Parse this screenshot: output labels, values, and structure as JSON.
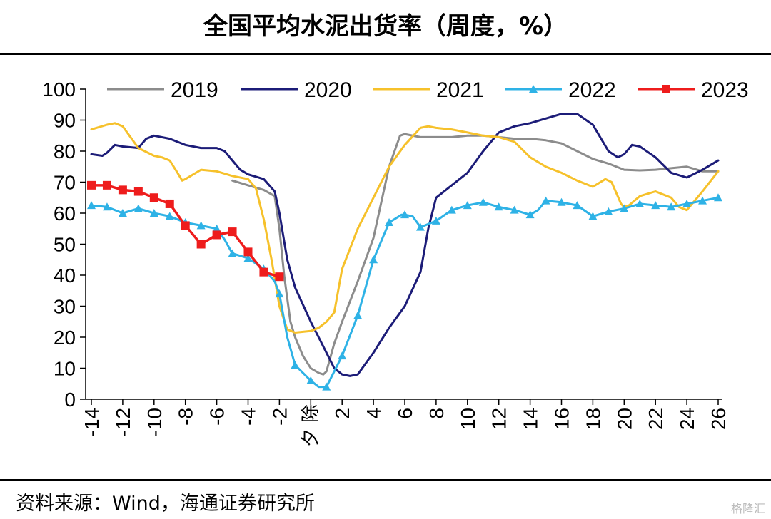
{
  "title": "全国平均水泥出货率（周度，%）",
  "source": "资料来源：Wind，海通证券研究所",
  "watermark": "格隆汇",
  "chart_data": {
    "type": "line",
    "title": "全国平均水泥出货率（周度，%）",
    "xlabel": "",
    "ylabel": "",
    "ylim": [
      0,
      100
    ],
    "yticks": [
      "0",
      "10",
      "20",
      "30",
      "40",
      "50",
      "60",
      "70",
      "80",
      "90",
      "100"
    ],
    "xlim": [
      -14,
      26
    ],
    "xticks": [
      "-14",
      "-12",
      "-10",
      "-8",
      "-6",
      "-4",
      "-2",
      "除夕",
      "2",
      "4",
      "6",
      "8",
      "10",
      "12",
      "14",
      "16",
      "18",
      "20",
      "22",
      "24",
      "26"
    ],
    "grid": false,
    "legend": "top",
    "series": [
      {
        "name": "2019",
        "color": "#8c8c8c",
        "marker": "none",
        "points": [
          [
            -5,
            70.5
          ],
          [
            -4,
            69
          ],
          [
            -3,
            67.5
          ],
          [
            -2.3,
            65.5
          ],
          [
            -2,
            55
          ],
          [
            -1.7,
            40
          ],
          [
            -1.3,
            25
          ],
          [
            -1,
            20
          ],
          [
            -0.5,
            14
          ],
          [
            0,
            10
          ],
          [
            0.5,
            8.5
          ],
          [
            0.8,
            8
          ],
          [
            1,
            9
          ],
          [
            1.5,
            18
          ],
          [
            2,
            25
          ],
          [
            3,
            38
          ],
          [
            4,
            52
          ],
          [
            5,
            75
          ],
          [
            5.7,
            85
          ],
          [
            6,
            85.5
          ],
          [
            7,
            84.5
          ],
          [
            8,
            84.5
          ],
          [
            9,
            84.5
          ],
          [
            10,
            85
          ],
          [
            11,
            85
          ],
          [
            12,
            84.5
          ],
          [
            13,
            84
          ],
          [
            14,
            84
          ],
          [
            15,
            83.5
          ],
          [
            16,
            82.5
          ],
          [
            17,
            80
          ],
          [
            18,
            77.5
          ],
          [
            19,
            76
          ],
          [
            20,
            74
          ],
          [
            21,
            73.8
          ],
          [
            22,
            74
          ],
          [
            23,
            74.5
          ],
          [
            24,
            75
          ],
          [
            25,
            73.5
          ],
          [
            26,
            73.5
          ]
        ]
      },
      {
        "name": "2020",
        "color": "#1c1c78",
        "marker": "none",
        "points": [
          [
            -14,
            79
          ],
          [
            -13.3,
            78.5
          ],
          [
            -13,
            79.5
          ],
          [
            -12.5,
            82
          ],
          [
            -12,
            81.5
          ],
          [
            -11,
            81
          ],
          [
            -10.5,
            84
          ],
          [
            -10,
            85
          ],
          [
            -9,
            84
          ],
          [
            -8,
            82
          ],
          [
            -7,
            81
          ],
          [
            -6,
            81
          ],
          [
            -5.5,
            80
          ],
          [
            -5,
            77
          ],
          [
            -4.5,
            74
          ],
          [
            -4,
            72.5
          ],
          [
            -3,
            71
          ],
          [
            -2.3,
            67
          ],
          [
            -2,
            60
          ],
          [
            -1.5,
            45
          ],
          [
            -1,
            36
          ],
          [
            0,
            25
          ],
          [
            0.5,
            20
          ],
          [
            1,
            15
          ],
          [
            1.5,
            10
          ],
          [
            2,
            8
          ],
          [
            2.5,
            7.5
          ],
          [
            3,
            8
          ],
          [
            4,
            15
          ],
          [
            5,
            23
          ],
          [
            6,
            30
          ],
          [
            7,
            41
          ],
          [
            7.5,
            55
          ],
          [
            8,
            65
          ],
          [
            9,
            69
          ],
          [
            10,
            73
          ],
          [
            11,
            80
          ],
          [
            12,
            86
          ],
          [
            13,
            88
          ],
          [
            14,
            89
          ],
          [
            15,
            90.5
          ],
          [
            16,
            92
          ],
          [
            17,
            92
          ],
          [
            18,
            88.5
          ],
          [
            19,
            80
          ],
          [
            19.6,
            78
          ],
          [
            20,
            79
          ],
          [
            20.5,
            82
          ],
          [
            21,
            81.5
          ],
          [
            22,
            78
          ],
          [
            23,
            73
          ],
          [
            24,
            71.5
          ],
          [
            25,
            74
          ],
          [
            26,
            77
          ]
        ]
      },
      {
        "name": "2021",
        "color": "#f6c12b",
        "marker": "none",
        "points": [
          [
            -14,
            87
          ],
          [
            -13,
            88.5
          ],
          [
            -12.5,
            89
          ],
          [
            -12,
            88
          ],
          [
            -11,
            81
          ],
          [
            -10,
            78.5
          ],
          [
            -9.5,
            78
          ],
          [
            -9,
            77
          ],
          [
            -8.5,
            73
          ],
          [
            -8.2,
            70.5
          ],
          [
            -8,
            71
          ],
          [
            -7,
            74
          ],
          [
            -6,
            73.5
          ],
          [
            -5,
            72
          ],
          [
            -4,
            71
          ],
          [
            -3.5,
            68
          ],
          [
            -3,
            58
          ],
          [
            -2.5,
            45
          ],
          [
            -2,
            30
          ],
          [
            -1.5,
            22.5
          ],
          [
            -1,
            21.5
          ],
          [
            0,
            22
          ],
          [
            0.5,
            23
          ],
          [
            1,
            25
          ],
          [
            1.5,
            28
          ],
          [
            2,
            42
          ],
          [
            3,
            55
          ],
          [
            4,
            65
          ],
          [
            5,
            75
          ],
          [
            6,
            82
          ],
          [
            7,
            87.5
          ],
          [
            7.5,
            88
          ],
          [
            8,
            87.5
          ],
          [
            9,
            87
          ],
          [
            10,
            86
          ],
          [
            11,
            85
          ],
          [
            12,
            84.5
          ],
          [
            13,
            83
          ],
          [
            14,
            78
          ],
          [
            15,
            75
          ],
          [
            16,
            73
          ],
          [
            17,
            70.5
          ],
          [
            18,
            68.5
          ],
          [
            18.8,
            71
          ],
          [
            19.2,
            70
          ],
          [
            19.8,
            63
          ],
          [
            20,
            62
          ],
          [
            20.3,
            62.5
          ],
          [
            21,
            65.5
          ],
          [
            22,
            67
          ],
          [
            23,
            65
          ],
          [
            23.5,
            62
          ],
          [
            24,
            61
          ],
          [
            24.5,
            64
          ],
          [
            25,
            67
          ],
          [
            26,
            73.5
          ]
        ]
      },
      {
        "name": "2022",
        "color": "#2eb2e6",
        "marker": "triangle",
        "points": [
          [
            -14,
            62.5
          ],
          [
            -13,
            62
          ],
          [
            -12,
            60
          ],
          [
            -11,
            61.5
          ],
          [
            -10,
            60
          ],
          [
            -9,
            59
          ],
          [
            -8,
            57
          ],
          [
            -7,
            56
          ],
          [
            -6,
            55
          ],
          [
            -5.5,
            51.5
          ],
          [
            -5,
            47
          ],
          [
            -4,
            45.5
          ],
          [
            -3,
            42
          ],
          [
            -2.3,
            38
          ],
          [
            -2,
            34
          ],
          [
            -1.5,
            20
          ],
          [
            -1,
            11
          ],
          [
            0,
            6
          ],
          [
            0.5,
            4
          ],
          [
            1,
            4
          ],
          [
            1.5,
            9
          ],
          [
            2,
            14
          ],
          [
            3,
            27
          ],
          [
            4,
            45
          ],
          [
            5,
            57
          ],
          [
            5.8,
            59.5
          ],
          [
            6,
            59.5
          ],
          [
            6.5,
            59
          ],
          [
            7,
            55.5
          ],
          [
            8,
            57.5
          ],
          [
            9,
            61
          ],
          [
            10,
            62.5
          ],
          [
            11,
            63.5
          ],
          [
            12,
            62
          ],
          [
            13,
            61
          ],
          [
            14,
            59.5
          ],
          [
            14.5,
            61
          ],
          [
            15,
            64
          ],
          [
            16,
            63.5
          ],
          [
            17,
            62.5
          ],
          [
            18,
            59
          ],
          [
            19,
            60.5
          ],
          [
            20,
            61.5
          ],
          [
            21,
            63
          ],
          [
            22,
            62.5
          ],
          [
            23,
            62
          ],
          [
            24,
            63
          ],
          [
            25,
            64
          ],
          [
            26,
            65
          ]
        ]
      },
      {
        "name": "2023",
        "color": "#ee1c1c",
        "marker": "square",
        "points": [
          [
            -14,
            69
          ],
          [
            -13,
            69
          ],
          [
            -12,
            67.5
          ],
          [
            -11,
            67
          ],
          [
            -10,
            65
          ],
          [
            -9,
            63
          ],
          [
            -8,
            56
          ],
          [
            -7,
            50
          ],
          [
            -6,
            53
          ],
          [
            -5,
            54
          ],
          [
            -4,
            47.5
          ],
          [
            -3,
            41
          ],
          [
            -2,
            39.5
          ]
        ]
      }
    ]
  }
}
